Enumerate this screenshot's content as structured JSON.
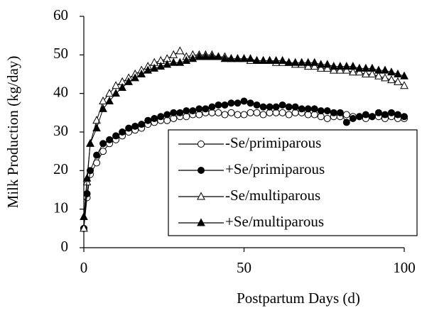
{
  "chart_data": {
    "type": "line",
    "xlabel": "Postpartum Days (d)",
    "ylabel": "Milk Production (kg/day)",
    "x": [
      0,
      1,
      2,
      4,
      6,
      8,
      10,
      12,
      14,
      16,
      18,
      20,
      22,
      24,
      26,
      28,
      30,
      32,
      34,
      36,
      38,
      40,
      42,
      44,
      46,
      48,
      50,
      52,
      54,
      56,
      58,
      60,
      62,
      64,
      66,
      68,
      70,
      72,
      74,
      76,
      78,
      80,
      82,
      84,
      86,
      88,
      90,
      92,
      94,
      96,
      98,
      100
    ],
    "series": [
      {
        "name": "-Se/primiparous",
        "color": "#000000",
        "marker": "circle",
        "marker_fill": "#ffffff",
        "values": [
          5,
          13,
          19,
          22,
          25,
          27,
          28,
          29,
          30,
          30.5,
          31,
          32,
          32.5,
          33,
          33,
          33.5,
          34,
          34,
          34.5,
          34.5,
          35,
          35,
          35,
          34.5,
          35,
          34.5,
          34.5,
          35,
          35,
          34.5,
          35,
          35,
          35,
          34.5,
          35,
          35,
          34.5,
          34.5,
          34,
          33.5,
          34,
          34,
          34.5,
          34,
          34,
          33.5,
          34,
          34,
          33.5,
          34,
          33.5,
          33.5
        ]
      },
      {
        "name": "+Se/primiparous",
        "color": "#000000",
        "marker": "circle",
        "marker_fill": "#000000",
        "values": [
          5,
          14,
          20,
          24,
          27,
          28,
          29,
          30,
          31,
          31.5,
          32,
          33,
          33.5,
          34,
          34.5,
          35,
          35,
          35.5,
          35.5,
          36,
          36,
          36.5,
          37,
          37,
          37.5,
          37.5,
          38,
          37.5,
          37,
          36.5,
          36.5,
          36.5,
          37,
          36.5,
          36.5,
          36,
          36,
          36,
          35.5,
          35.5,
          35,
          35,
          32.5,
          33.5,
          34,
          34.5,
          34,
          35,
          34.5,
          35,
          34.5,
          34
        ]
      },
      {
        "name": "-Se/multiparous",
        "color": "#000000",
        "marker": "triangle",
        "marker_fill": "#ffffff",
        "values": [
          5,
          17,
          27,
          33,
          38,
          40,
          42,
          43,
          44,
          45,
          46,
          47,
          48,
          48.5,
          49,
          50,
          51,
          49.5,
          50,
          50,
          50,
          50,
          49.5,
          49.5,
          49,
          49,
          49,
          48.5,
          48.5,
          48.5,
          48.5,
          48,
          48,
          48,
          47.5,
          47.5,
          47,
          47,
          46.5,
          46.5,
          46,
          46,
          46,
          45.5,
          45.5,
          45,
          45,
          44.5,
          44,
          43.5,
          43,
          42
        ]
      },
      {
        "name": "+Se/multiparous",
        "color": "#000000",
        "marker": "triangle",
        "marker_fill": "#000000",
        "values": [
          8,
          18,
          27,
          31,
          36,
          38,
          40,
          41.5,
          43,
          44,
          45,
          46,
          46.5,
          47,
          47.5,
          48,
          48,
          48.5,
          49,
          49.5,
          49.5,
          49.5,
          49.5,
          49,
          49,
          49,
          49,
          49,
          48.5,
          48.5,
          48.5,
          48.5,
          48.5,
          48,
          48,
          48,
          48,
          48,
          47.5,
          47.5,
          47,
          47,
          47,
          47,
          46.5,
          46.5,
          46.5,
          46,
          46,
          45.5,
          45,
          44.5
        ]
      }
    ],
    "xlim": [
      0,
      100
    ],
    "xticks": [
      0,
      50,
      100
    ],
    "ylim": [
      0,
      60
    ],
    "yticks": [
      0,
      10,
      20,
      30,
      40,
      50,
      60
    ]
  }
}
